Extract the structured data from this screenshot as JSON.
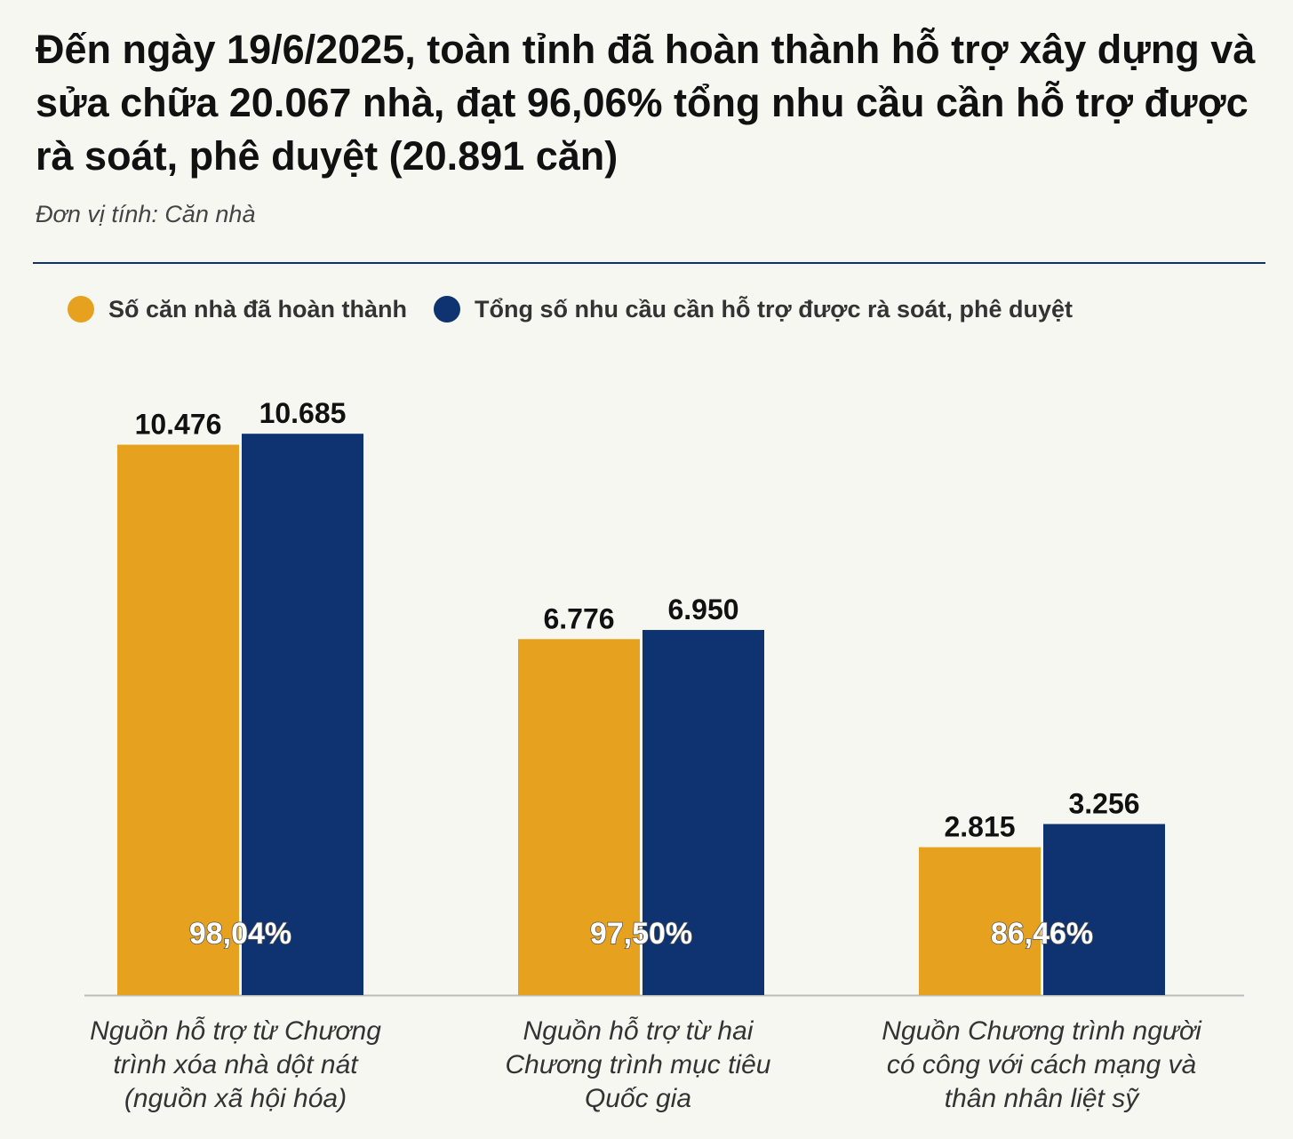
{
  "header": {
    "title": "Đến ngày 19/6/2025, toàn tỉnh đã hoàn thành hỗ trợ xây dựng và sửa chữa 20.067 nhà, đạt 96,06% tổng nhu cầu cần hỗ trợ được rà soát, phê duyệt (20.891 căn)",
    "unit": "Đơn vị tính: Căn nhà"
  },
  "chart_data": {
    "type": "bar",
    "categories": [
      [
        "Nguồn hỗ trợ từ Chương",
        "trình xóa nhà dột nát",
        "(nguồn xã hội hóa)"
      ],
      [
        "Nguồn hỗ trợ từ hai",
        "Chương trình mục tiêu",
        "Quốc gia"
      ],
      [
        "Nguồn Chương trình người",
        "có công với cách mạng và",
        "thân nhân liệt sỹ"
      ]
    ],
    "series": [
      {
        "name": "Số căn nhà đã hoàn thành",
        "color": "#e6a21f",
        "values": [
          10476,
          6776,
          2815
        ],
        "labels": [
          "10.476",
          "6.776",
          "2.815"
        ]
      },
      {
        "name": "Tổng số nhu cầu cần hỗ trợ được rà soát, phê duyệt",
        "color": "#0f3370",
        "values": [
          10685,
          6950,
          3256
        ],
        "labels": [
          "10.685",
          "6.950",
          "3.256"
        ]
      }
    ],
    "percent_labels": [
      "98,04%",
      "97,50%",
      "86,46%"
    ],
    "ylim": [
      0,
      11500
    ],
    "grid": false,
    "legend": "top-left"
  }
}
